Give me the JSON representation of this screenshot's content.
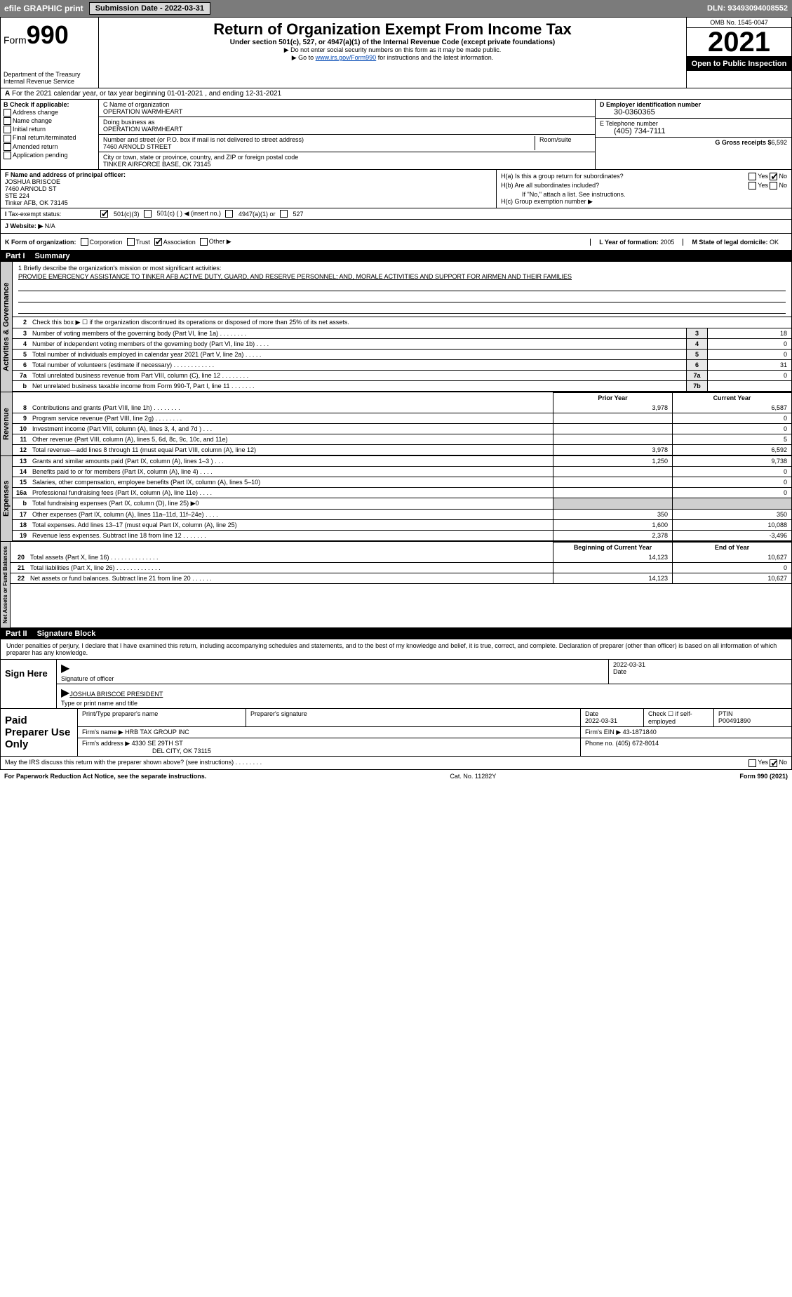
{
  "top": {
    "efile": "efile GRAPHIC print",
    "submission": "Submission Date - 2022-03-31",
    "dln": "DLN: 93493094008552"
  },
  "header": {
    "form_prefix": "Form",
    "form_num": "990",
    "title": "Return of Organization Exempt From Income Tax",
    "sub": "Under section 501(c), 527, or 4947(a)(1) of the Internal Revenue Code (except private foundations)",
    "note1": "▶ Do not enter social security numbers on this form as it may be made public.",
    "note2_pre": "▶ Go to ",
    "note2_link": "www.irs.gov/Form990",
    "note2_post": " for instructions and the latest information.",
    "dept": "Department of the Treasury",
    "irs": "Internal Revenue Service",
    "omb": "OMB No. 1545-0047",
    "year": "2021",
    "open": "Open to Public Inspection"
  },
  "row_a": "For the 2021 calendar year, or tax year beginning 01-01-2021    , and ending 12-31-2021",
  "col_b": {
    "hdr": "B Check if applicable:",
    "items": [
      "Address change",
      "Name change",
      "Initial return",
      "Final return/terminated",
      "Amended return",
      "Application pending"
    ]
  },
  "col_c": {
    "name_lbl": "C Name of organization",
    "name": "OPERATION WARMHEART",
    "dba_lbl": "Doing business as",
    "dba": "OPERATION WARMHEART",
    "street_lbl": "Number and street (or P.O. box if mail is not delivered to street address)",
    "room_lbl": "Room/suite",
    "street": "7460 ARNOLD STREET",
    "city_lbl": "City or town, state or province, country, and ZIP or foreign postal code",
    "city": "TINKER AIRFORCE BASE, OK   73145"
  },
  "col_de": {
    "d_lbl": "D Employer identification number",
    "d_val": "30-0360365",
    "e_lbl": "E Telephone number",
    "e_val": "(405) 734-7111",
    "g_lbl": "G Gross receipts $",
    "g_val": "6,592"
  },
  "col_f": {
    "lbl": "F  Name and address of principal officer:",
    "l1": "JOSHUA BRISCOE",
    "l2": "7460 ARNOLD ST",
    "l3": "STE 224",
    "l4": "Tinker AFB, OK  73145"
  },
  "col_h": {
    "ha": "H(a)  Is this a group return for subordinates?",
    "hb": "H(b)  Are all subordinates included?",
    "hb2": "If \"No,\" attach a list. See instructions.",
    "hc": "H(c)  Group exemption number ▶",
    "yes": "Yes",
    "no": "No"
  },
  "exempt": {
    "lbl": "Tax-exempt status:",
    "o1": "501(c)(3)",
    "o2": "501(c) (  ) ◀ (insert no.)",
    "o3": "4947(a)(1) or",
    "o4": "527"
  },
  "row_j": {
    "lbl": "J   Website: ▶",
    "val": "N/A"
  },
  "row_k": {
    "lbl": "K Form of organization:",
    "o1": "Corporation",
    "o2": "Trust",
    "o3": "Association",
    "o4": "Other ▶",
    "l_lbl": "L Year of formation:",
    "l_val": "2005",
    "m_lbl": "M State of legal domicile:",
    "m_val": "OK"
  },
  "part1": {
    "num": "Part I",
    "title": "Summary"
  },
  "mission": {
    "lbl": "1   Briefly describe the organization's mission or most significant activities:",
    "txt": "PROVIDE EMERCENCY ASSISTANCE TO TINKER AFB ACTIVE DUTY, GUARD, AND RESERVE PERSONNEL; AND, MORALE ACTIVITIES AND SUPPORT FOR AIRMEN AND THEIR FAMILIES"
  },
  "gov": {
    "tab": "Activities & Governance",
    "l2": "Check this box ▶ ☐ if the organization discontinued its operations or disposed of more than 25% of its net assets.",
    "lines": [
      {
        "n": "3",
        "lbl": "Number of voting members of the governing body (Part VI, line 1a)  .    .    .    .    .    .    .    .",
        "box": "3",
        "val": "18"
      },
      {
        "n": "4",
        "lbl": "Number of independent voting members of the governing body (Part VI, line 1b)   .    .    .    .",
        "box": "4",
        "val": "0"
      },
      {
        "n": "5",
        "lbl": "Total number of individuals employed in calendar year 2021 (Part V, line 2a)    .    .    .    .    .",
        "box": "5",
        "val": "0"
      },
      {
        "n": "6",
        "lbl": "Total number of volunteers (estimate if necessary)    .    .    .    .    .    .    .    .    .    .    .    .",
        "box": "6",
        "val": "31"
      },
      {
        "n": "7a",
        "lbl": "Total unrelated business revenue from Part VIII, column (C), line 12    .    .    .    .    .    .    .    .",
        "box": "7a",
        "val": "0"
      },
      {
        "n": "b",
        "lbl": "Net unrelated business taxable income from Form 990-T, Part I, line 11    .    .    .    .    .    .    .",
        "box": "7b",
        "val": ""
      }
    ]
  },
  "cols": {
    "prior": "Prior Year",
    "current": "Current Year"
  },
  "rev": {
    "tab": "Revenue",
    "lines": [
      {
        "n": "8",
        "lbl": "Contributions and grants (Part VIII, line 1h)    .    .    .    .    .    .    .    .",
        "p": "3,978",
        "c": "6,587"
      },
      {
        "n": "9",
        "lbl": "Program service revenue (Part VIII, line 2g)    .    .    .    .    .    .    .    .",
        "p": "",
        "c": "0"
      },
      {
        "n": "10",
        "lbl": "Investment income (Part VIII, column (A), lines 3, 4, and 7d )    .    .    .",
        "p": "",
        "c": "0"
      },
      {
        "n": "11",
        "lbl": "Other revenue (Part VIII, column (A), lines 5, 6d, 8c, 9c, 10c, and 11e)",
        "p": "",
        "c": "5"
      },
      {
        "n": "12",
        "lbl": "Total revenue—add lines 8 through 11 (must equal Part VIII, column (A), line 12)",
        "p": "3,978",
        "c": "6,592"
      }
    ]
  },
  "exp": {
    "tab": "Expenses",
    "lines": [
      {
        "n": "13",
        "lbl": "Grants and similar amounts paid (Part IX, column (A), lines 1–3 )   .    .    .",
        "p": "1,250",
        "c": "9,738"
      },
      {
        "n": "14",
        "lbl": "Benefits paid to or for members (Part IX, column (A), line 4)   .    .    .    .",
        "p": "",
        "c": "0"
      },
      {
        "n": "15",
        "lbl": "Salaries, other compensation, employee benefits (Part IX, column (A), lines 5–10)",
        "p": "",
        "c": "0"
      },
      {
        "n": "16a",
        "lbl": "Professional fundraising fees (Part IX, column (A), line 11e)    .    .    .    .",
        "p": "",
        "c": "0"
      },
      {
        "n": "b",
        "lbl": "Total fundraising expenses (Part IX, column (D), line 25) ▶0",
        "p": "shade",
        "c": "shade"
      },
      {
        "n": "17",
        "lbl": "Other expenses (Part IX, column (A), lines 11a–11d, 11f–24e)    .    .    .    .",
        "p": "350",
        "c": "350"
      },
      {
        "n": "18",
        "lbl": "Total expenses. Add lines 13–17 (must equal Part IX, column (A), line 25)",
        "p": "1,600",
        "c": "10,088"
      },
      {
        "n": "19",
        "lbl": "Revenue less expenses. Subtract line 18 from line 12   .    .    .    .    .    .    .",
        "p": "2,378",
        "c": "-3,496"
      }
    ]
  },
  "net": {
    "tab": "Net Assets or Fund Balances",
    "hdr_p": "Beginning of Current Year",
    "hdr_c": "End of Year",
    "lines": [
      {
        "n": "20",
        "lbl": "Total assets (Part X, line 16)   .    .    .    .    .    .    .    .    .    .    .    .    .    .",
        "p": "14,123",
        "c": "10,627"
      },
      {
        "n": "21",
        "lbl": "Total liabilities (Part X, line 26)   .    .    .    .    .    .    .    .    .    .    .    .    .",
        "p": "",
        "c": "0"
      },
      {
        "n": "22",
        "lbl": "Net assets or fund balances. Subtract line 21 from line 20   .    .    .    .    .    .",
        "p": "14,123",
        "c": "10,627"
      }
    ]
  },
  "part2": {
    "num": "Part II",
    "title": "Signature Block"
  },
  "sig_intro": "Under penalties of perjury, I declare that I have examined this return, including accompanying schedules and statements, and to the best of my knowledge and belief, it is true, correct, and complete. Declaration of preparer (other than officer) is based on all information of which preparer has any knowledge.",
  "sign": {
    "here": "Sign Here",
    "sig_lbl": "Signature of officer",
    "date_lbl": "Date",
    "date": "2022-03-31",
    "name": "JOSHUA BRISCOE  PRESIDENT",
    "name_lbl": "Type or print name and title"
  },
  "prep": {
    "title": "Paid Preparer Use Only",
    "h1": "Print/Type preparer's name",
    "h2": "Preparer's signature",
    "h3": "Date",
    "h4": "Check ☐ if self-employed",
    "h5": "PTIN",
    "date": "2022-03-31",
    "ptin": "P00491890",
    "firm_lbl": "Firm's name    ▶",
    "firm": "HRB TAX GROUP INC",
    "ein_lbl": "Firm's EIN ▶",
    "ein": "43-1871840",
    "addr_lbl": "Firm's address ▶",
    "addr1": "4330 SE 29TH ST",
    "addr2": "DEL CITY, OK  73115",
    "phone_lbl": "Phone no.",
    "phone": "(405) 672-8014"
  },
  "footer": {
    "q": "May the IRS discuss this return with the preparer shown above? (see instructions)    .    .    .    .    .    .    .    .",
    "yes": "Yes",
    "no": "No"
  },
  "bottom": {
    "l": "For Paperwork Reduction Act Notice, see the separate instructions.",
    "m": "Cat. No. 11282Y",
    "r": "Form 990 (2021)"
  }
}
